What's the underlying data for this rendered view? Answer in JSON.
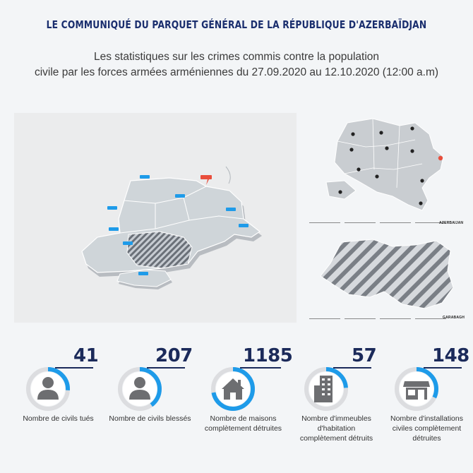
{
  "header": {
    "title": "Le communiqué du parquet général de la République d'Azerbaïdjan",
    "subtitle_line1": "Les statistiques sur les crimes commis contre la population",
    "subtitle_line2": "civile par les forces armées arméniennes du 27.09.2020 au 12.10.2020 (12:00 a.m)"
  },
  "maps": {
    "right_top_caption": "AZERBAIJAN",
    "right_bottom_caption": "GARABAGH"
  },
  "colors": {
    "accent": "#1e9be9",
    "ring_bg": "#dcdde0",
    "dark_navy": "#1b2a5a",
    "icon_gray": "#6d6e71",
    "pin_blue": "#1e9be9",
    "pin_red": "#e94e3c"
  },
  "stats": [
    {
      "value": "41",
      "fraction": 0.26,
      "icon": "person-icon",
      "label_lines": [
        "Nombre de civils tués"
      ]
    },
    {
      "value": "207",
      "fraction": 0.4,
      "icon": "person-icon",
      "label_lines": [
        "Nombre de civils blessés"
      ]
    },
    {
      "value": "1185",
      "fraction": 0.72,
      "icon": "house-icon",
      "label_lines": [
        "Nombre de maisons",
        "complètement détruites"
      ]
    },
    {
      "value": "57",
      "fraction": 0.24,
      "icon": "building-icon",
      "label_lines": [
        "Nombre d'immeubles",
        "d'habitation",
        "complètement détruits"
      ]
    },
    {
      "value": "148",
      "fraction": 0.32,
      "icon": "shop-icon",
      "label_lines": [
        "Nombre d'installations",
        "civiles complètement",
        "détruites"
      ]
    }
  ]
}
